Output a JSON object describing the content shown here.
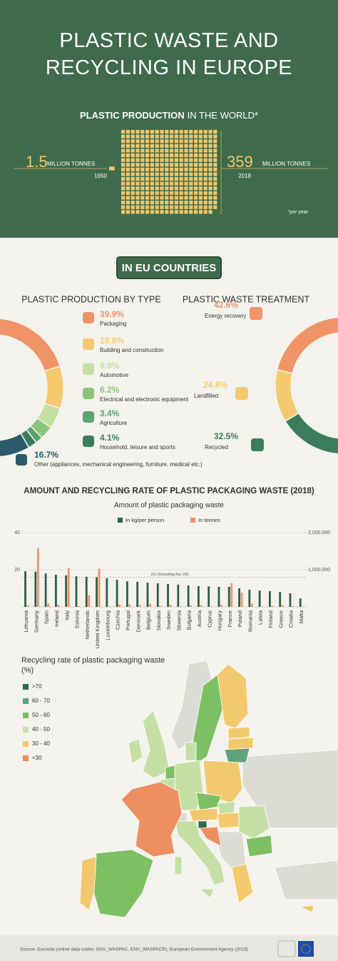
{
  "header": {
    "title": "PLASTIC WASTE AND RECYCLING IN EUROPE"
  },
  "world": {
    "title_bold": "PLASTIC PRODUCTION",
    "title_rest": "IN THE WORLD*",
    "unit": "MILLION TONNES",
    "note": "*per year",
    "points": [
      {
        "value": 1.5,
        "year": "1950"
      },
      {
        "value": 359,
        "year": "2018"
      }
    ]
  },
  "section_label": "IN EU COUNTRIES",
  "chart_data": [
    {
      "type": "donut",
      "title": "PLASTIC PRODUCTION BY TYPE",
      "categories": [
        "Packaging",
        "Building and construction",
        "Automotive",
        "Electrical and electronic equipment",
        "Agriculture",
        "Household, leisure and sports",
        "Other (appliances, mechanical engineering, furniture, medical etc.)"
      ],
      "values": [
        39.9,
        19.8,
        9.9,
        6.2,
        3.4,
        4.1,
        16.7
      ],
      "value_labels": [
        "39.9%",
        "19.8%",
        "9.9%",
        "6.2%",
        "3.4%",
        "4.1%",
        "16.7%"
      ],
      "colors": [
        "#f09468",
        "#f5c96e",
        "#c3e0a0",
        "#8cc57a",
        "#5aa46e",
        "#3b7d5a",
        "#2b5a6a"
      ]
    },
    {
      "type": "donut",
      "title": "PLASTIC WASTE TREATMENT",
      "categories": [
        "Energy recovery",
        "Landfilled",
        "Recycled"
      ],
      "values": [
        42.6,
        24.9,
        32.5
      ],
      "value_labels": [
        "42.6%",
        "24.9%",
        "32.5%"
      ],
      "colors": [
        "#f09468",
        "#f5c96e",
        "#3b7d5a"
      ]
    },
    {
      "type": "bar",
      "title": "AMOUNT AND RECYCLING RATE OF PLASTIC PACKAGING WASTE (2018)",
      "subtitle": "Amount of plastic packaging waste",
      "categories": [
        "Lithuania",
        "Germany",
        "Spain",
        "Ireland",
        "Italy",
        "Estonia",
        "Netherlands",
        "United Kingdom",
        "Luxembourg",
        "Czechia",
        "Portugal",
        "Denmark",
        "Belgium",
        "Slovakia",
        "Sweden",
        "Slovenia",
        "Bulgaria",
        "Austria",
        "Cyprus",
        "Hungary",
        "France",
        "Poland",
        "Romania",
        "Latvia",
        "Finland",
        "Greece",
        "Croatia",
        "Malta"
      ],
      "series": [
        {
          "name": "In kg/per person",
          "color": "#2f5e45",
          "values": [
            19.2,
            19,
            18,
            17.3,
            17,
            16.5,
            16.2,
            16,
            15.4,
            14.6,
            13.8,
            13.5,
            13,
            12.7,
            12.3,
            12,
            11.5,
            11.2,
            11,
            10.8,
            10.8,
            10,
            9.2,
            8.8,
            8.5,
            8,
            7.3,
            4.6
          ]
        },
        {
          "name": "In tonnes",
          "color": "#ee9468",
          "axis": "y2",
          "values": [
            40000,
            1580000,
            90000,
            60000,
            1040000,
            20000,
            310000,
            1030000,
            10000,
            70000,
            70000,
            50000,
            80000,
            30000,
            60000,
            10000,
            40000,
            50000,
            10000,
            50000,
            640000,
            380000,
            90000,
            10000,
            30000,
            50000,
            20000,
            10000
          ]
        }
      ],
      "ylim": [
        0,
        40
      ],
      "yticks": [
        20,
        40
      ],
      "y2lim": [
        0,
        2000000
      ],
      "y2ticks": [
        {
          "value": 1000000,
          "label": "1,000,000"
        },
        {
          "value": 2000000,
          "label": "2,000,000"
        }
      ],
      "grid": true,
      "reference_line": {
        "label": "EU (including the UK)",
        "value": 16
      }
    },
    {
      "type": "map",
      "title": "Recycling rate of plastic packaging waste (%)",
      "legend": [
        ">70",
        "60 - 70",
        "50 - 60",
        "40 - 50",
        "30 - 40",
        "<30"
      ],
      "colors": [
        "#2f6b4f",
        "#5fa37a",
        "#7dc063",
        "#c5e0a5",
        "#f3c96e",
        "#ee8f62"
      ]
    }
  ],
  "source": "Source: Eurostat (online data codes: ENV_WASPAC, ENV_WASPACR), European Environment Agency (2018)"
}
